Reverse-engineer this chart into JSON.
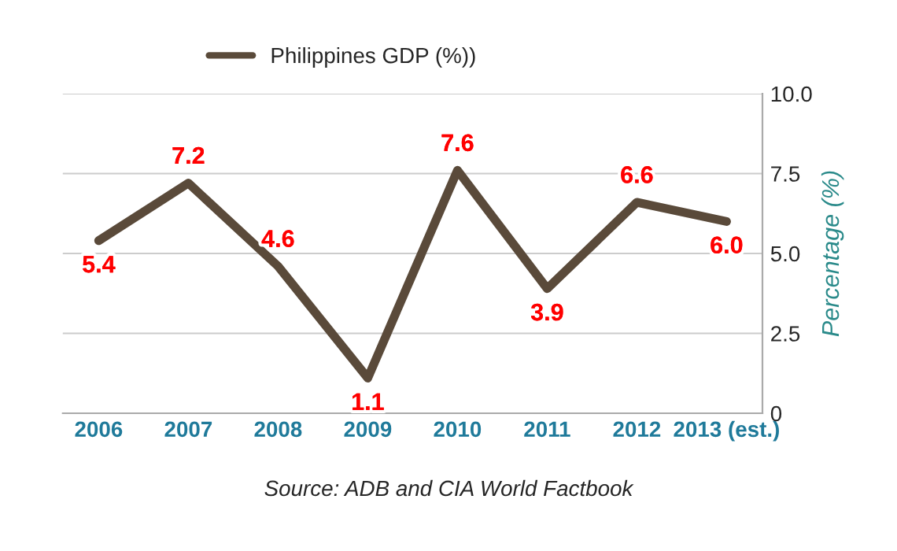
{
  "chart_data": {
    "type": "line",
    "ylabel": "Percentage (%)",
    "categories": [
      "2006",
      "2007",
      "2008",
      "2009",
      "2010",
      "2011",
      "2012",
      "2013 (est.)"
    ],
    "series": [
      {
        "name": "Philippines GDP (%))",
        "color": "#5a4a3a",
        "values": [
          5.4,
          7.2,
          4.6,
          1.1,
          7.6,
          3.9,
          6.6,
          6.0
        ],
        "value_labels": [
          "5.4",
          "7.2",
          "4.6",
          "1.1",
          "7.6",
          "3.9",
          "6.6",
          "6.0"
        ]
      }
    ],
    "ylim": [
      0,
      10
    ],
    "yticks": [
      0,
      2.5,
      {
        "value": 5,
        "label": "5.0"
      },
      7.5,
      {
        "value": 10,
        "label": "10.0"
      }
    ],
    "grid": "y",
    "legend": "top",
    "marker": "none",
    "line_style": "solid",
    "annotations": [
      "Source: ADB and CIA World Factbook"
    ]
  }
}
